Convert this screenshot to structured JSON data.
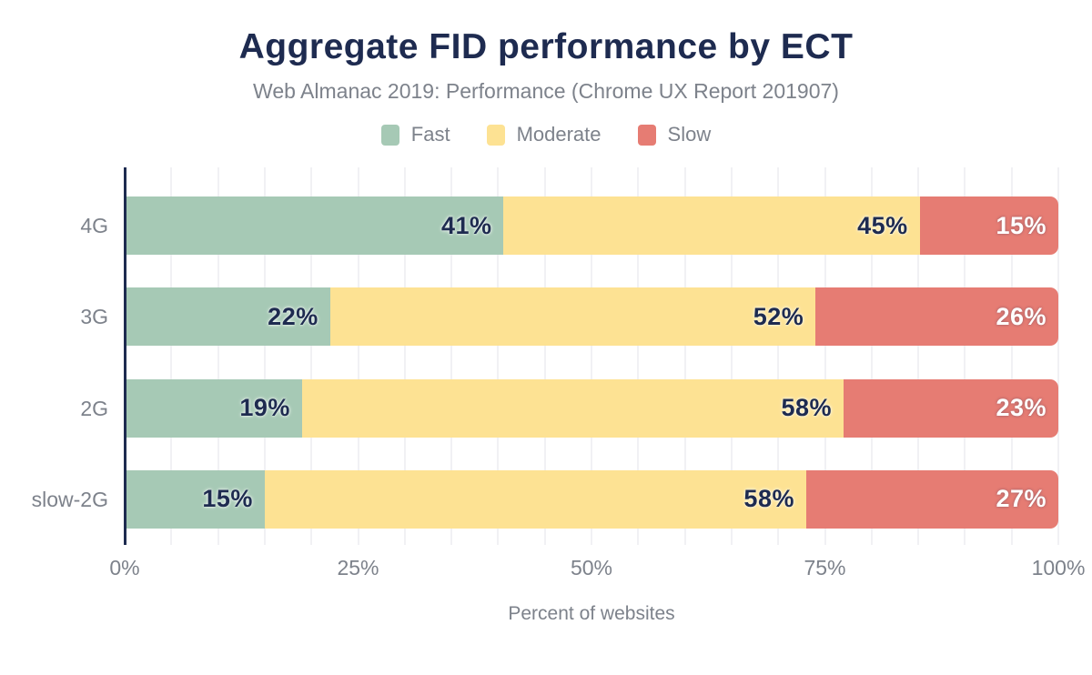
{
  "title": "Aggregate FID performance by ECT",
  "subtitle": "Web Almanac 2019: Performance (Chrome UX Report 201907)",
  "legend": [
    {
      "label": "Fast",
      "color": "#a6c9b5"
    },
    {
      "label": "Moderate",
      "color": "#fde293"
    },
    {
      "label": "Slow",
      "color": "#e67c73"
    }
  ],
  "colors": {
    "title_navy": "#1e2b50",
    "text_gray": "#7d828b",
    "gridline": "#f1f1f4",
    "axis_line": "#1e2b50",
    "background": "#ffffff"
  },
  "chart_data": {
    "type": "bar",
    "orientation": "horizontal",
    "stacked": true,
    "title": "Aggregate FID performance by ECT",
    "subtitle": "Web Almanac 2019: Performance (Chrome UX Report 201907)",
    "categories": [
      "4G",
      "3G",
      "2G",
      "slow-2G"
    ],
    "series": [
      {
        "name": "Fast",
        "color": "#a6c9b5",
        "label_style": "dark",
        "values": [
          41,
          22,
          19,
          15
        ]
      },
      {
        "name": "Moderate",
        "color": "#fde293",
        "label_style": "dark",
        "values": [
          45,
          52,
          58,
          58
        ]
      },
      {
        "name": "Slow",
        "color": "#e67c73",
        "label_style": "light",
        "values": [
          15,
          26,
          23,
          27
        ]
      }
    ],
    "value_suffix": "%",
    "xlabel": "Percent of websites",
    "ylabel": "",
    "xlim": [
      0,
      100
    ],
    "x_ticks": [
      {
        "label": "0%",
        "pos": 0
      },
      {
        "label": "25%",
        "pos": 25
      },
      {
        "label": "50%",
        "pos": 50
      },
      {
        "label": "75%",
        "pos": 75
      },
      {
        "label": "100%",
        "pos": 100
      }
    ],
    "grid": "vertical",
    "grid_step": 5,
    "legend_position": "top"
  }
}
